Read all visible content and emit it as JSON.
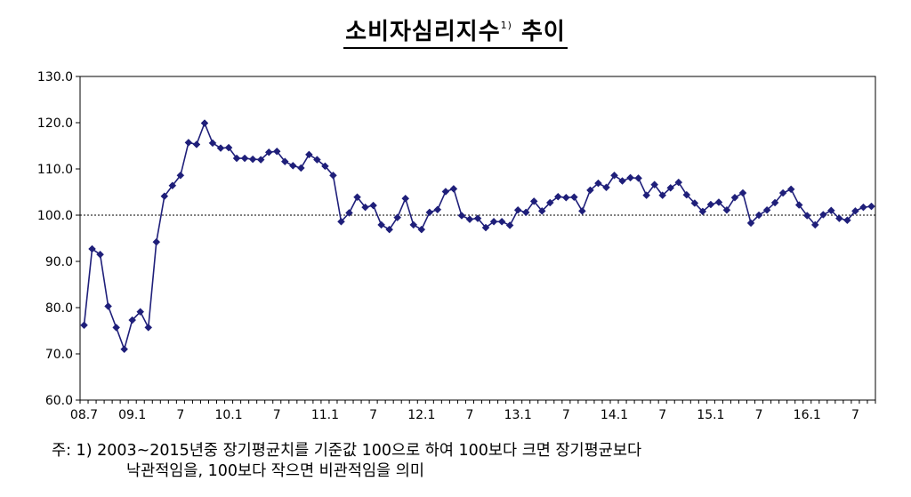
{
  "title": {
    "text": "소비자심리지수",
    "sup": "1)",
    "suffix": " 추이"
  },
  "note": {
    "line1": "주: 1) 2003~2015년중 장기평균치를 기준값 100으로 하여 100보다 크면 장기평균보다",
    "line2": "낙관적임을, 100보다 작으면 비관적임을 의미"
  },
  "chart_data": {
    "type": "line",
    "title": "소비자심리지수 추이",
    "ylim": [
      60,
      130
    ],
    "yticks": [
      "60.0",
      "70.0",
      "80.0",
      "90.0",
      "100.0",
      "110.0",
      "120.0",
      "130.0"
    ],
    "reference_line": 100,
    "x_tick_labels": [
      {
        "index": 0,
        "label": "08.7"
      },
      {
        "index": 6,
        "label": "09.1"
      },
      {
        "index": 12,
        "label": "7"
      },
      {
        "index": 18,
        "label": "10.1"
      },
      {
        "index": 24,
        "label": "7"
      },
      {
        "index": 30,
        "label": "11.1"
      },
      {
        "index": 36,
        "label": "7"
      },
      {
        "index": 42,
        "label": "12.1"
      },
      {
        "index": 48,
        "label": "7"
      },
      {
        "index": 54,
        "label": "13.1"
      },
      {
        "index": 60,
        "label": "7"
      },
      {
        "index": 66,
        "label": "14.1"
      },
      {
        "index": 72,
        "label": "7"
      },
      {
        "index": 78,
        "label": "15.1"
      },
      {
        "index": 84,
        "label": "7"
      },
      {
        "index": 90,
        "label": "16.1"
      },
      {
        "index": 96,
        "label": "7"
      }
    ],
    "series": [
      {
        "color": "#1f1f7a",
        "values": [
          76.2,
          92.7,
          91.5,
          80.3,
          75.7,
          71.0,
          77.3,
          79.1,
          75.7,
          94.2,
          104.1,
          106.4,
          108.6,
          115.7,
          115.3,
          119.9,
          115.6,
          114.5,
          114.6,
          112.3,
          112.3,
          112.1,
          112.0,
          113.6,
          113.8,
          111.6,
          110.7,
          110.2,
          113.1,
          112.0,
          110.6,
          108.6,
          98.6,
          100.5,
          103.9,
          101.7,
          102.1,
          97.9,
          96.9,
          99.5,
          103.6,
          97.9,
          96.9,
          100.6,
          101.2,
          105.1,
          105.7,
          99.9,
          99.1,
          99.3,
          97.3,
          98.6,
          98.6,
          97.8,
          101.1,
          100.6,
          103.0,
          100.9,
          102.7,
          104.0,
          103.8,
          103.9,
          100.9,
          105.4,
          106.9,
          106.0,
          108.6,
          107.4,
          108.1,
          108.0,
          104.3,
          106.6,
          104.3,
          105.9,
          107.1,
          104.4,
          102.6,
          100.8,
          102.3,
          102.8,
          101.1,
          103.8,
          104.8,
          98.3,
          100.0,
          101.1,
          102.7,
          104.8,
          105.6,
          102.2,
          99.9,
          97.9,
          100.1,
          101.0,
          99.3,
          98.9,
          100.9,
          101.7,
          101.9
        ]
      }
    ]
  }
}
